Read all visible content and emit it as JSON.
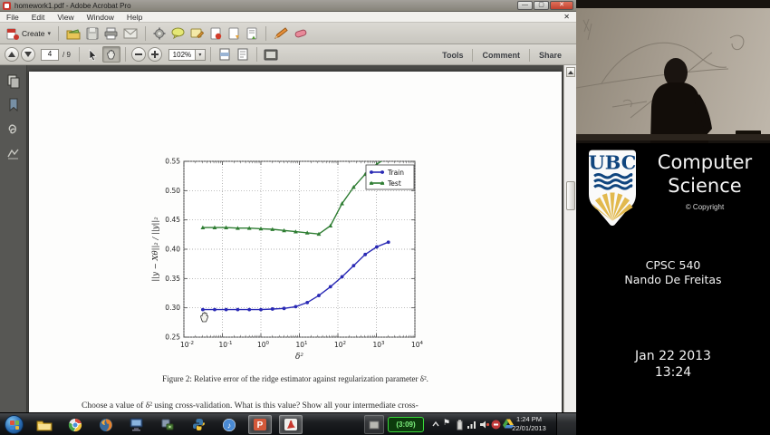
{
  "window": {
    "title": "homework1.pdf - Adobe Acrobat Pro",
    "menus": [
      "File",
      "Edit",
      "View",
      "Window",
      "Help"
    ],
    "toolbar": {
      "create_label": "Create",
      "page_current": "4",
      "page_total_label": "/ 9",
      "zoom_value": "102%",
      "tools_label": "Tools",
      "comment_label": "Comment",
      "share_label": "Share"
    }
  },
  "document": {
    "figure_caption": "Figure 2: Relative error of the ridge estimator against regularization parameter δ².",
    "body_line": "Choose a value of δ² using cross-validation. What is this value? Show all your intermediate cross-"
  },
  "chart_data": {
    "type": "line",
    "title": "",
    "xlabel": "δ²",
    "ylabel": "||y − Xθ||₂ / ||y||₂",
    "x_scale": "log",
    "xlog_range": [
      -2,
      4
    ],
    "x_tick_exponents": [
      -2,
      -1,
      0,
      1,
      2,
      3,
      4
    ],
    "ylim": [
      0.25,
      0.55
    ],
    "y_ticks": [
      "0.25",
      "0.30",
      "0.35",
      "0.40",
      "0.45",
      "0.50",
      "0.55"
    ],
    "grid": "dotted",
    "legend_position": "upper right",
    "x": [
      0.031,
      0.063,
      0.125,
      0.25,
      0.5,
      1,
      2,
      4,
      8,
      16,
      32,
      64,
      128,
      256,
      512,
      1024,
      2048
    ],
    "series": [
      {
        "name": "Train",
        "color": "#2a2ab5",
        "marker": "circle",
        "values": [
          0.297,
          0.297,
          0.297,
          0.297,
          0.297,
          0.297,
          0.298,
          0.299,
          0.302,
          0.309,
          0.321,
          0.336,
          0.353,
          0.372,
          0.391,
          0.404,
          0.412
        ]
      },
      {
        "name": "Test",
        "color": "#2e7d32",
        "marker": "triangle",
        "values": [
          0.437,
          0.437,
          0.437,
          0.436,
          0.436,
          0.435,
          0.434,
          0.432,
          0.43,
          0.428,
          0.426,
          0.44,
          0.478,
          0.506,
          0.528,
          0.545,
          0.558
        ]
      }
    ]
  },
  "video_panel": {
    "logo_text": "UBC",
    "dept_line1": "Computer",
    "dept_line2": "Science",
    "copyright_label": "© Copyright",
    "course_code": "CPSC 540",
    "instructor": "Nando De Freitas",
    "date_label": "Jan 22 2013",
    "time_label": "13:24"
  },
  "taskbar": {
    "battery_timer": "(3:09)",
    "clock_time": "1:24 PM",
    "clock_date": "22/01/2013"
  },
  "icons": {
    "dropdown_arrow": "▾",
    "music_note": "♪",
    "close_glyph": "✕",
    "panel_toggle": "↷",
    "flag": "⚑"
  },
  "colors": {
    "train_series": "#2a2ab5",
    "test_series": "#2e7d32",
    "close_button": "#c04230",
    "battery_badge_border": "#39d839"
  }
}
